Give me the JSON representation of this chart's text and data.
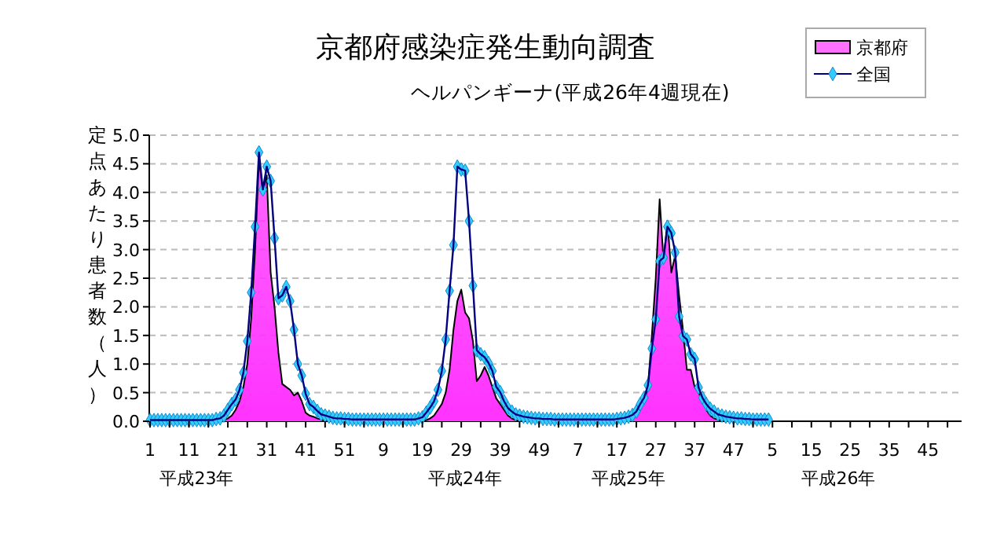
{
  "chart_data": {
    "type": "area",
    "title": "京都府感染症発生動向調査",
    "subtitle": "ヘルパンギーナ(平成26年4週現在)",
    "ylabel": "定点あたり患者数（人）",
    "annotations": [
      "平成23年",
      "平成24年",
      "平成25年",
      "平成26年"
    ],
    "categories": [
      "1",
      null,
      null,
      null,
      null,
      null,
      null,
      null,
      null,
      null,
      "11",
      null,
      null,
      null,
      null,
      null,
      null,
      null,
      null,
      null,
      "21",
      null,
      null,
      null,
      null,
      null,
      null,
      null,
      null,
      null,
      "31",
      null,
      null,
      null,
      null,
      null,
      null,
      null,
      null,
      null,
      "41",
      null,
      null,
      null,
      null,
      null,
      null,
      null,
      null,
      null,
      "51",
      null,
      null,
      null,
      null,
      null,
      null,
      null,
      null,
      null,
      "9",
      null,
      null,
      null,
      null,
      null,
      null,
      null,
      null,
      null,
      "19",
      null,
      null,
      null,
      null,
      null,
      null,
      null,
      null,
      null,
      "29",
      null,
      null,
      null,
      null,
      null,
      null,
      null,
      null,
      null,
      "39",
      null,
      null,
      null,
      null,
      null,
      null,
      null,
      null,
      null,
      "49",
      null,
      null,
      null,
      null,
      null,
      null,
      null,
      null,
      null,
      "7",
      null,
      null,
      null,
      null,
      null,
      null,
      null,
      null,
      null,
      "17",
      null,
      null,
      null,
      null,
      null,
      null,
      null,
      null,
      null,
      "27",
      null,
      null,
      null,
      null,
      null,
      null,
      null,
      null,
      null,
      "37",
      null,
      null,
      null,
      null,
      null,
      null,
      null,
      null,
      null,
      "47",
      null,
      null,
      null,
      null,
      null,
      null,
      null,
      null,
      null,
      "5",
      null,
      null,
      null,
      null,
      null,
      null,
      null,
      null,
      null,
      "15",
      null,
      null,
      null,
      null,
      null,
      null,
      null,
      null,
      null,
      "25",
      null,
      null,
      null,
      null,
      null,
      null,
      null,
      null,
      null,
      "35",
      null,
      null,
      null,
      null,
      null,
      null,
      null,
      null,
      null,
      "45",
      null,
      null,
      null,
      null,
      null,
      null,
      null
    ],
    "series": [
      {
        "name": "京都府",
        "color": "#ff33ff",
        "values": [
          0,
          0,
          0,
          0,
          0,
          0,
          0,
          0,
          0,
          0,
          0,
          0,
          0,
          0,
          0,
          0,
          0,
          0,
          0,
          0.02,
          0.05,
          0.1,
          0.2,
          0.35,
          0.6,
          1.0,
          1.8,
          3.0,
          4.6,
          4.0,
          4.3,
          2.6,
          2.0,
          1.2,
          0.65,
          0.6,
          0.55,
          0.45,
          0.5,
          0.35,
          0.15,
          0.1,
          0.08,
          0.05,
          0.03,
          0,
          0,
          0,
          0,
          0,
          0,
          0,
          0,
          0,
          0,
          0,
          0,
          0,
          0,
          0,
          0,
          0,
          0,
          0,
          0,
          0,
          0,
          0,
          0,
          0,
          0,
          0.02,
          0.05,
          0.1,
          0.2,
          0.3,
          0.5,
          0.9,
          1.6,
          2.1,
          2.3,
          1.9,
          1.8,
          1.4,
          0.7,
          0.8,
          0.95,
          0.8,
          0.6,
          0.4,
          0.3,
          0.2,
          0.1,
          0.05,
          0.02,
          0,
          0,
          0,
          0,
          0,
          0,
          0,
          0,
          0,
          0,
          0,
          0,
          0,
          0,
          0,
          0,
          0,
          0,
          0,
          0,
          0,
          0,
          0,
          0,
          0,
          0,
          0,
          0,
          0.02,
          0.05,
          0.1,
          0.2,
          0.35,
          0.6,
          1.5,
          2.5,
          3.88,
          2.8,
          3.5,
          2.6,
          2.9,
          2.2,
          1.6,
          0.9,
          0.9,
          0.6,
          0.5,
          0.35,
          0.2,
          0.1,
          0.05,
          0.03,
          0,
          0,
          0,
          0,
          0,
          0,
          0,
          0,
          0,
          0,
          0,
          0,
          0,
          null,
          null,
          null,
          null,
          null,
          null,
          null,
          null,
          null,
          null,
          null,
          null,
          null,
          null,
          null,
          null,
          null,
          null,
          null,
          null,
          null,
          null,
          null,
          null,
          null,
          null,
          null,
          null,
          null,
          null,
          null,
          null,
          null,
          null,
          null,
          null,
          null,
          null,
          null,
          null,
          null,
          null,
          null,
          null,
          null,
          null,
          null,
          null
        ]
      },
      {
        "name": "全国",
        "type": "line",
        "marker": "diamond",
        "color": "#000080",
        "values": [
          0.02,
          0.02,
          0.02,
          0.02,
          0.02,
          0.02,
          0.02,
          0.02,
          0.02,
          0.02,
          0.02,
          0.02,
          0.02,
          0.02,
          0.02,
          0.02,
          0.02,
          0.04,
          0.05,
          0.1,
          0.2,
          0.3,
          0.38,
          0.55,
          0.85,
          1.4,
          2.25,
          3.4,
          4.7,
          4.05,
          4.45,
          4.2,
          3.2,
          2.15,
          2.2,
          2.35,
          2.1,
          1.6,
          1.0,
          0.8,
          0.48,
          0.3,
          0.25,
          0.18,
          0.12,
          0.1,
          0.08,
          0.06,
          0.05,
          0.05,
          0.04,
          0.04,
          0.03,
          0.03,
          0.03,
          0.03,
          0.03,
          0.03,
          0.03,
          0.03,
          0.03,
          0.03,
          0.03,
          0.03,
          0.03,
          0.03,
          0.03,
          0.03,
          0.03,
          0.05,
          0.07,
          0.15,
          0.24,
          0.35,
          0.55,
          0.88,
          1.43,
          2.28,
          3.08,
          4.45,
          4.4,
          4.38,
          3.5,
          2.37,
          1.24,
          1.17,
          1.12,
          1.02,
          0.88,
          0.6,
          0.51,
          0.35,
          0.23,
          0.17,
          0.12,
          0.1,
          0.08,
          0.07,
          0.06,
          0.05,
          0.05,
          0.04,
          0.04,
          0.04,
          0.03,
          0.03,
          0.03,
          0.03,
          0.03,
          0.03,
          0.03,
          0.03,
          0.03,
          0.03,
          0.03,
          0.03,
          0.03,
          0.03,
          0.03,
          0.03,
          0.04,
          0.05,
          0.06,
          0.08,
          0.11,
          0.17,
          0.3,
          0.41,
          0.63,
          1.27,
          1.78,
          2.8,
          2.86,
          3.4,
          3.29,
          2.95,
          1.83,
          1.49,
          1.43,
          1.17,
          1.09,
          0.59,
          0.41,
          0.3,
          0.22,
          0.17,
          0.12,
          0.1,
          0.08,
          0.07,
          0.06,
          0.05,
          0.05,
          0.04,
          0.04,
          0.03,
          0.03,
          0.03,
          0.03,
          0.03,
          null,
          null,
          null,
          null,
          null,
          null,
          null,
          null,
          null,
          null,
          null,
          null,
          null,
          null,
          null,
          null,
          null,
          null,
          null,
          null,
          null,
          null,
          null,
          null,
          null,
          null,
          null,
          null,
          null,
          null,
          null,
          null,
          null,
          null,
          null,
          null,
          null,
          null,
          null,
          null,
          null,
          null,
          null,
          null,
          null,
          null,
          null,
          null
        ]
      }
    ],
    "ylim": [
      0,
      5
    ],
    "yticks": [
      {
        "value": 0,
        "label": "0.0"
      },
      {
        "value": 0.5,
        "label": "0.5"
      },
      {
        "value": 1,
        "label": "1.0"
      },
      {
        "value": 1.5,
        "label": "1.5"
      },
      {
        "value": 2,
        "label": "2.0"
      },
      {
        "value": 2.5,
        "label": "2.5"
      },
      {
        "value": 3,
        "label": "3.0"
      },
      {
        "value": 3.5,
        "label": "3.5"
      },
      {
        "value": 4,
        "label": "4.0"
      },
      {
        "value": 4.5,
        "label": "4.5"
      },
      {
        "value": 5,
        "label": "5.0"
      }
    ],
    "grid": "y",
    "legend": "top right",
    "line_style": "solid"
  }
}
